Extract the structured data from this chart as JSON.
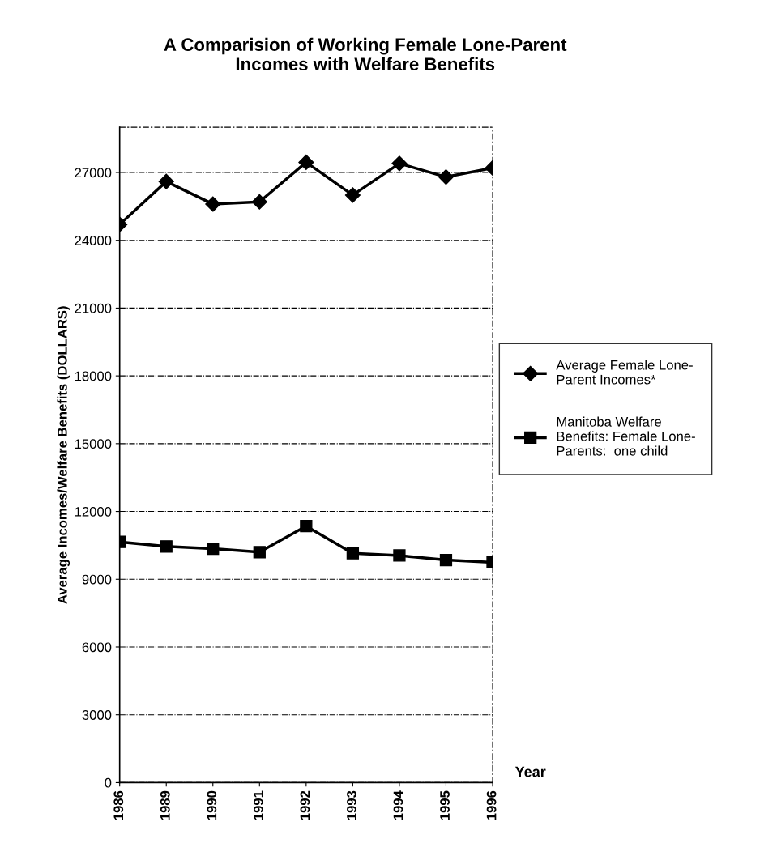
{
  "chart_data": {
    "type": "line",
    "title": "A Comparision of Working Female Lone-Parent\nIncomes with Welfare Benefits",
    "xlabel": "Year",
    "ylabel": "Average Incomes/Welfare Benefits (DOLLARS)",
    "categories": [
      "1986",
      "1989",
      "1990",
      "1991",
      "1992",
      "1993",
      "1994",
      "1995",
      "1996"
    ],
    "series": [
      {
        "name": "Average Female Lone-\nParent Incomes*",
        "color": "#000000",
        "marker": "diamond",
        "values": [
          24700,
          26600,
          25600,
          25700,
          27450,
          26000,
          27400,
          26800,
          27200
        ]
      },
      {
        "name": "Manitoba Welfare\nBenefits: Female Lone-\nParents:  one child",
        "color": "#000000",
        "marker": "square",
        "values": [
          10650,
          10450,
          10350,
          10200,
          11350,
          10150,
          10050,
          9850,
          9750
        ]
      }
    ],
    "ylim": [
      0,
      29000
    ],
    "yticks": [
      0,
      3000,
      6000,
      9000,
      12000,
      15000,
      18000,
      21000,
      24000,
      27000
    ],
    "grid": "y",
    "legend": "right",
    "line_style": "solid"
  }
}
